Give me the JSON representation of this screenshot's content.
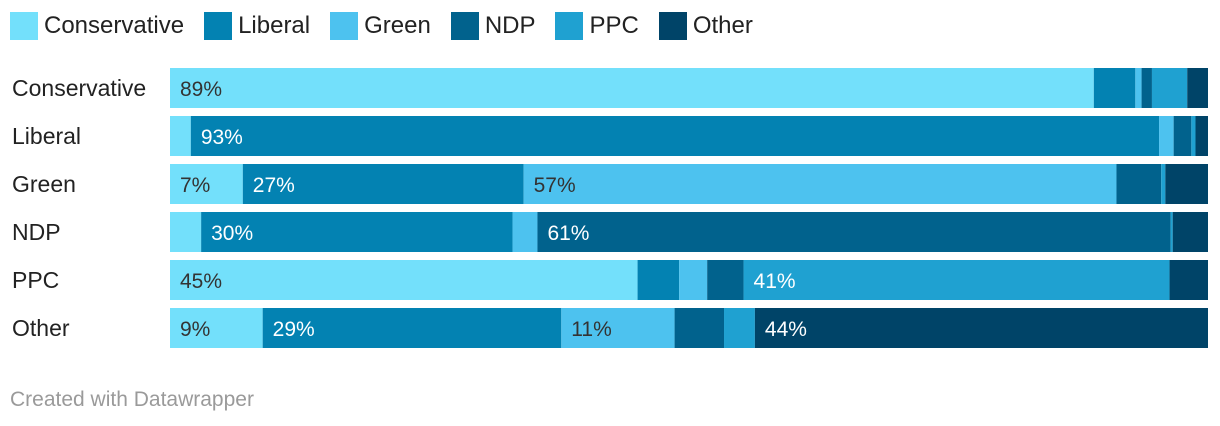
{
  "chart_data": {
    "type": "bar",
    "orientation": "horizontal",
    "stacked": true,
    "percent_scale": true,
    "categories": [
      "Conservative",
      "Liberal",
      "Green",
      "NDP",
      "PPC",
      "Other"
    ],
    "series": [
      {
        "name": "Conservative",
        "color": "#73e0fb",
        "values": [
          89,
          2,
          7,
          3,
          45,
          9
        ]
      },
      {
        "name": "Liberal",
        "color": "#0382b2",
        "values": [
          4,
          93,
          27,
          30,
          4,
          29
        ]
      },
      {
        "name": "Green",
        "color": "#4dc2ef",
        "values": [
          0.6,
          1.4,
          57,
          2.4,
          2.7,
          11
        ]
      },
      {
        "name": "NDP",
        "color": "#01628d",
        "values": [
          1,
          1.7,
          4.3,
          61,
          3.5,
          4.8
        ]
      },
      {
        "name": "PPC",
        "color": "#1fa1d1",
        "values": [
          3.4,
          0.4,
          0.4,
          0.2,
          41,
          3
        ]
      },
      {
        "name": "Other",
        "color": "#004468",
        "values": [
          2,
          1.2,
          4.1,
          3.4,
          3.7,
          44
        ]
      }
    ],
    "data_labels": [
      [
        "89%",
        "",
        "",
        "",
        "",
        ""
      ],
      [
        "",
        "93%",
        "",
        "",
        "",
        ""
      ],
      [
        "7%",
        "27%",
        "57%",
        "",
        "",
        ""
      ],
      [
        "",
        "30%",
        "",
        "61%",
        "",
        ""
      ],
      [
        "45%",
        "",
        "",
        "",
        "41%",
        ""
      ],
      [
        "9%",
        "29%",
        "11%",
        "",
        "",
        "44%"
      ]
    ],
    "legend_position": "top-left"
  },
  "footer": {
    "credit": "Created with Datawrapper"
  }
}
